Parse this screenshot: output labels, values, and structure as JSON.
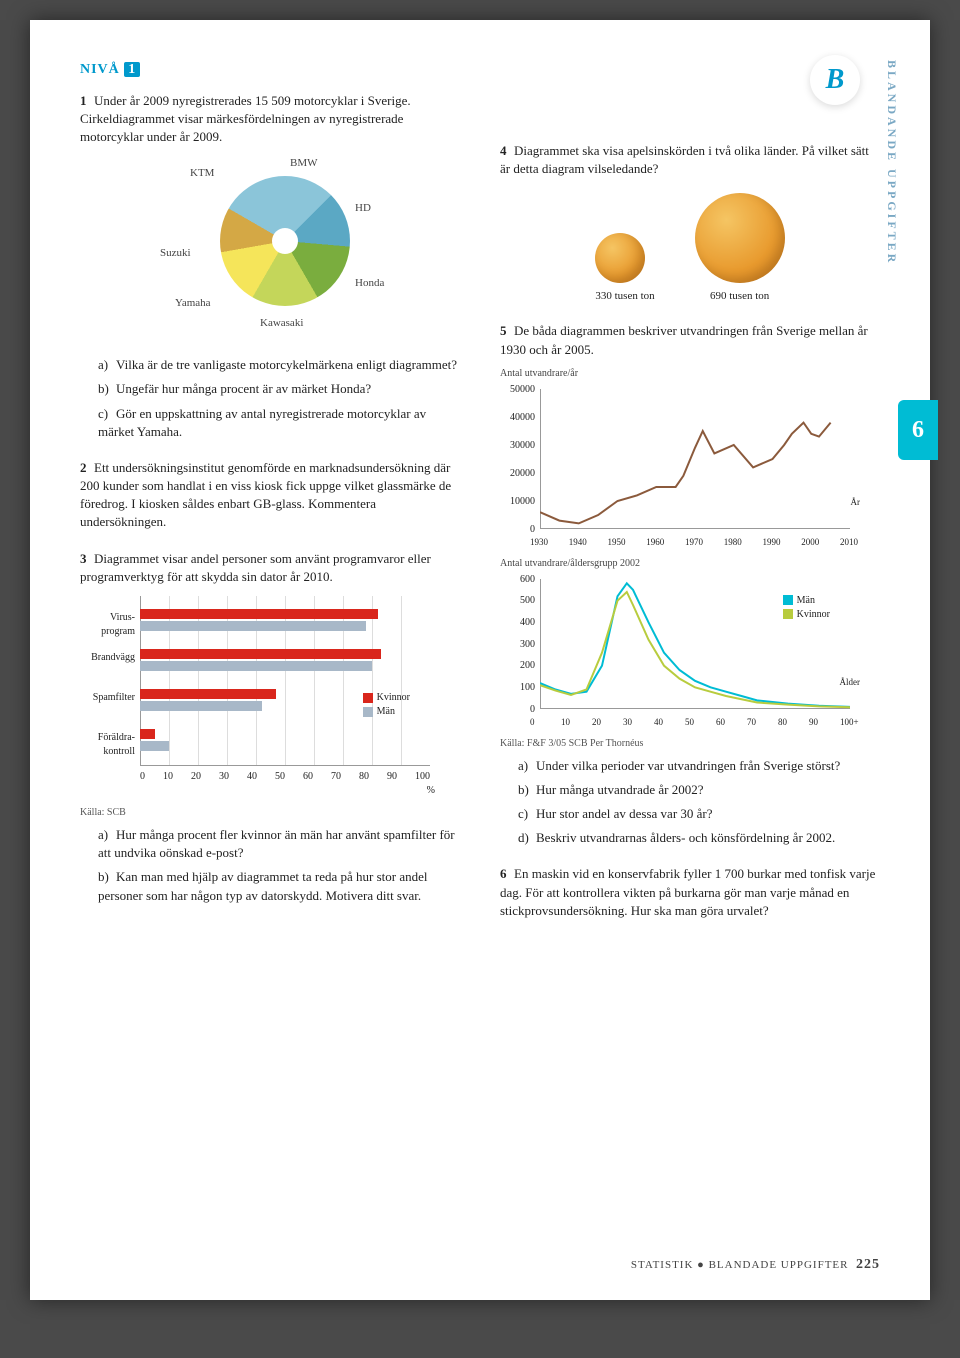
{
  "level_label": "NIVÅ",
  "level_num": "1",
  "badge": "B",
  "side_text": "BLANDANDE UPPGIFTER",
  "side_tab": "6",
  "footer": {
    "a": "STATISTIK",
    "b": "BLANDADE UPPGIFTER",
    "page": "225"
  },
  "q1": {
    "num": "1",
    "text": "Under år 2009 nyregistrerades 15 509 motorcyklar i Sverige. Cirkeldiagrammet visar märkesfördelningen av nyregistrerade motorcyklar under år 2009.",
    "pie": {
      "labels": {
        "ktm": "KTM",
        "bmw": "BMW",
        "hd": "HD",
        "honda": "Honda",
        "kawasaki": "Kawasaki",
        "yamaha": "Yamaha",
        "suzuki": "Suzuki"
      }
    },
    "a": "Vilka är de tre vanligaste motorcykelmärkena enligt diagrammet?",
    "b": "Ungefär hur många procent är av märket Honda?",
    "c": "Gör en uppskattning av antal nyregistrerade motorcyklar av märket Yamaha."
  },
  "q2": {
    "num": "2",
    "text": "Ett undersökningsinstitut genomförde en marknadsundersökning där 200 kunder som handlat i en viss kiosk fick uppge vilket glassmärke de föredrog. I kiosken såldes enbart GB-glass. Kommentera undersökningen."
  },
  "q3": {
    "num": "3",
    "text": "Diagrammet visar andel personer som använt programvaror eller programverktyg för att skydda sin dator år 2010.",
    "chart": {
      "categories": [
        "Virus-\nprogram",
        "Brandvägg",
        "Spamfilter",
        "Föräldra-\nkontroll"
      ],
      "women": [
        82,
        83,
        47,
        5
      ],
      "men": [
        78,
        80,
        42,
        10
      ],
      "women_color": "#d9261c",
      "men_color": "#a8b8c8",
      "legend_w": "Kvinnor",
      "legend_m": "Män",
      "xmax": 100,
      "xtick": 10,
      "xunit": "%"
    },
    "src": "Källa: SCB",
    "a": "Hur många procent fler kvinnor än män har använt spamfilter för att undvika oönskad e-post?",
    "b": "Kan man med hjälp av diagrammet ta reda på hur stor andel personer som har någon typ av datorskydd. Motivera ditt svar."
  },
  "q4": {
    "num": "4",
    "text": "Diagrammet ska visa apelsinskörden i två olika länder. På vilket sätt är detta diagram vilseledande?",
    "small": {
      "d": 50,
      "label": "330 tusen ton"
    },
    "large": {
      "d": 90,
      "label": "690 tusen ton"
    }
  },
  "q5": {
    "num": "5",
    "text": "De båda diagrammen beskriver utvandringen från Sverige mellan år 1930 och år 2005.",
    "chart1": {
      "title": "Antal utvandrare/år",
      "ylabel": "",
      "ymax": 50000,
      "ytick": 10000,
      "xmin": 1930,
      "xmax": 2010,
      "xtick": 10,
      "line_color": "#8b5a3c",
      "points": [
        [
          1930,
          6000
        ],
        [
          1935,
          3000
        ],
        [
          1940,
          2000
        ],
        [
          1945,
          5000
        ],
        [
          1950,
          10000
        ],
        [
          1955,
          12000
        ],
        [
          1960,
          15000
        ],
        [
          1965,
          15000
        ],
        [
          1967,
          19000
        ],
        [
          1970,
          29000
        ],
        [
          1972,
          35000
        ],
        [
          1975,
          27000
        ],
        [
          1980,
          30000
        ],
        [
          1985,
          22000
        ],
        [
          1990,
          25000
        ],
        [
          1993,
          30000
        ],
        [
          1995,
          34000
        ],
        [
          1998,
          38000
        ],
        [
          2000,
          34000
        ],
        [
          2002,
          33000
        ],
        [
          2005,
          38000
        ]
      ],
      "xaxis_label": "År"
    },
    "chart2": {
      "title": "Antal utvandrare/åldersgrupp 2002",
      "ymax": 600,
      "ytick": 100,
      "xmin": 0,
      "xmax": 100,
      "xtick": 10,
      "legend_m": "Män",
      "legend_w": "Kvinnor",
      "men_color": "#00bcd4",
      "women_color": "#b8cc3e",
      "men": [
        [
          0,
          120
        ],
        [
          5,
          90
        ],
        [
          10,
          70
        ],
        [
          15,
          80
        ],
        [
          20,
          200
        ],
        [
          25,
          520
        ],
        [
          28,
          580
        ],
        [
          30,
          550
        ],
        [
          35,
          400
        ],
        [
          40,
          260
        ],
        [
          45,
          180
        ],
        [
          50,
          130
        ],
        [
          55,
          100
        ],
        [
          60,
          80
        ],
        [
          65,
          60
        ],
        [
          70,
          40
        ],
        [
          80,
          25
        ],
        [
          90,
          15
        ],
        [
          100,
          10
        ]
      ],
      "women": [
        [
          0,
          110
        ],
        [
          5,
          85
        ],
        [
          10,
          65
        ],
        [
          15,
          90
        ],
        [
          20,
          260
        ],
        [
          25,
          500
        ],
        [
          28,
          540
        ],
        [
          30,
          480
        ],
        [
          35,
          320
        ],
        [
          40,
          200
        ],
        [
          45,
          140
        ],
        [
          50,
          100
        ],
        [
          55,
          80
        ],
        [
          60,
          60
        ],
        [
          65,
          45
        ],
        [
          70,
          30
        ],
        [
          80,
          20
        ],
        [
          90,
          12
        ],
        [
          100,
          8
        ]
      ],
      "xaxis_label": "Ålder",
      "xplus": "100+"
    },
    "src": "Källa: F&F 3/05 SCB Per Thornéus",
    "a": "Under vilka perioder var utvandringen från Sverige störst?",
    "b": "Hur många utvandrade år 2002?",
    "c": "Hur stor andel av dessa var 30 år?",
    "d": "Beskriv utvandrarnas ålders- och könsfördelning år 2002."
  },
  "q6": {
    "num": "6",
    "text": "En maskin vid en konservfabrik fyller 1 700 burkar med tonfisk varje dag. För att kontrollera vikten på burkarna gör man varje månad en stickprovsundersökning. Hur ska man göra urvalet?"
  }
}
